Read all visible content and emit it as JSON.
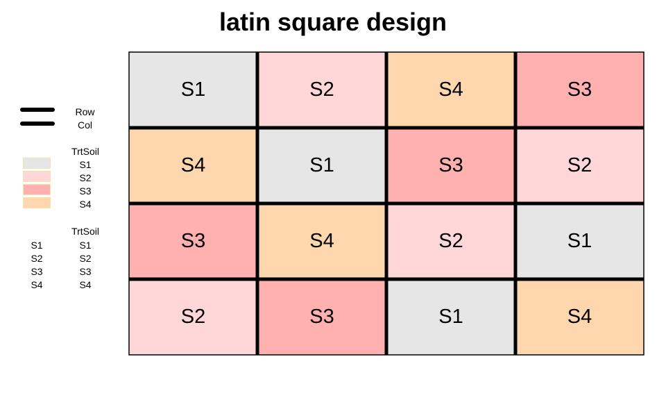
{
  "title": "latin square design",
  "legend": {
    "lines": {
      "labels": [
        "Row",
        "Col"
      ]
    },
    "fill": {
      "title": "TrtSoil",
      "items": [
        {
          "label": "S1",
          "color": "#e6e6e6"
        },
        {
          "label": "S2",
          "color": "#ffd7d9"
        },
        {
          "label": "S3",
          "color": "#ffb1b0"
        },
        {
          "label": "S4",
          "color": "#fed7af"
        }
      ]
    },
    "text": {
      "title": "TrtSoil",
      "items": [
        {
          "symbol": "S1",
          "label": "S1"
        },
        {
          "symbol": "S2",
          "label": "S2"
        },
        {
          "symbol": "S3",
          "label": "S3"
        },
        {
          "symbol": "S4",
          "label": "S4"
        }
      ]
    }
  },
  "grid": {
    "rows": [
      [
        "S1",
        "S2",
        "S4",
        "S3"
      ],
      [
        "S4",
        "S1",
        "S3",
        "S2"
      ],
      [
        "S3",
        "S4",
        "S2",
        "S1"
      ],
      [
        "S2",
        "S3",
        "S1",
        "S4"
      ]
    ]
  }
}
